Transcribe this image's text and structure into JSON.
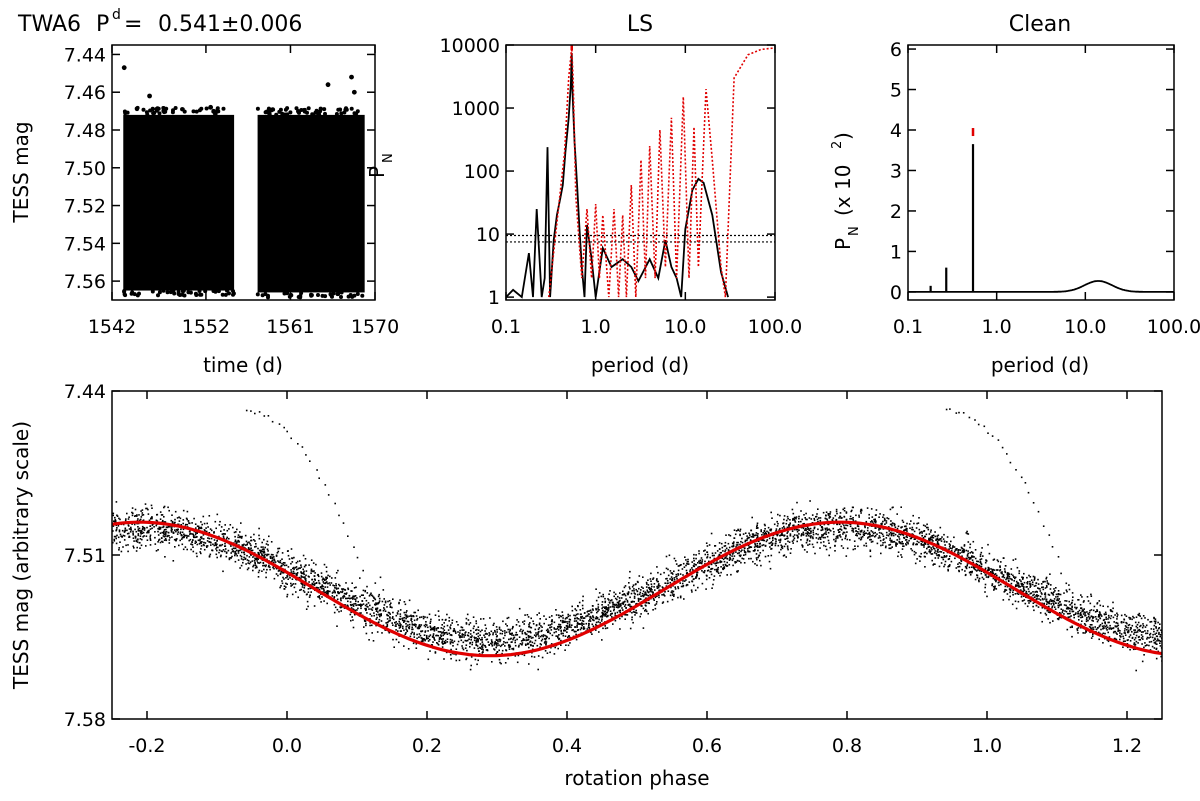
{
  "header": {
    "star": "TWA6",
    "period_symbol": "P",
    "period_superscript": "d",
    "period_equals": "=",
    "period_value": "0.541±0.006"
  },
  "chart_data": [
    {
      "id": "lightcurve",
      "type": "scatter",
      "title": "",
      "xlabel": "time (d)",
      "ylabel": "TESS mag",
      "xlim": [
        1542,
        1570
      ],
      "ylim": [
        7.57,
        7.435
      ],
      "y_inverted": true,
      "x_ticks": [
        "1542",
        "1552",
        "1561",
        "1570"
      ],
      "x_tick_values": [
        1542,
        1552,
        1561,
        1570
      ],
      "y_ticks": [
        "7.44",
        "7.46",
        "7.48",
        "7.50",
        "7.52",
        "7.54",
        "7.56"
      ],
      "y_tick_values": [
        7.44,
        7.46,
        7.48,
        7.5,
        7.52,
        7.54,
        7.56
      ],
      "segments": [
        {
          "x_start": 1543.2,
          "x_end": 1555.0,
          "y_top": 7.472,
          "y_bottom": 7.565
        },
        {
          "x_start": 1557.5,
          "x_end": 1568.9,
          "y_top": 7.472,
          "y_bottom": 7.566
        }
      ],
      "outliers": [
        {
          "x": 1543.3,
          "y": 7.447
        },
        {
          "x": 1546.0,
          "y": 7.462
        },
        {
          "x": 1552.5,
          "y": 7.468
        },
        {
          "x": 1565.0,
          "y": 7.456
        },
        {
          "x": 1567.5,
          "y": 7.452
        },
        {
          "x": 1567.8,
          "y": 7.46
        }
      ],
      "color": "#000000"
    },
    {
      "id": "ls",
      "type": "line",
      "title": "LS",
      "xlabel": "period (d)",
      "ylabel": "P",
      "ylabel_subscript": "N",
      "x_scale": "log",
      "y_scale": "log",
      "xlim": [
        0.1,
        100
      ],
      "ylim": [
        0.9,
        10000
      ],
      "x_ticks": [
        "0.1",
        "1.0",
        "10.0",
        "100.0"
      ],
      "x_tick_values": [
        0.1,
        1,
        10,
        100
      ],
      "y_ticks": [
        "1",
        "10",
        "100",
        "1000",
        "10000"
      ],
      "y_tick_values": [
        1,
        10,
        100,
        1000,
        10000
      ],
      "threshold_lines": [
        7.5,
        9.5
      ],
      "series": [
        {
          "style": "solid",
          "color": "#000000",
          "x": [
            0.1,
            0.12,
            0.15,
            0.18,
            0.2,
            0.22,
            0.25,
            0.27,
            0.29,
            0.31,
            0.34,
            0.37,
            0.4,
            0.43,
            0.46,
            0.5,
            0.53,
            0.541,
            0.55,
            0.58,
            0.62,
            0.66,
            0.7,
            0.75,
            0.8,
            0.9,
            1.0,
            1.2,
            1.5,
            2.0,
            2.5,
            3.0,
            4.0,
            5.0,
            6.0,
            7.0,
            8.0,
            9.0,
            10.0,
            12.0,
            14.0,
            16.0,
            20.0,
            25.0,
            30.0
          ],
          "y": [
            1,
            1.3,
            1,
            5,
            1,
            25,
            1,
            2,
            240,
            1,
            8,
            20,
            35,
            60,
            200,
            700,
            2500,
            7500,
            2000,
            300,
            60,
            12,
            3,
            1,
            14,
            4,
            1,
            6,
            3,
            4,
            3,
            1.8,
            4,
            2,
            8,
            3,
            2,
            1,
            12,
            50,
            75,
            65,
            20,
            2.5,
            1
          ]
        },
        {
          "style": "dotted",
          "color": "#e00000",
          "x": [
            0.3,
            0.45,
            0.5,
            0.541,
            0.56,
            0.6,
            0.7,
            0.8,
            0.9,
            1.0,
            1.1,
            1.2,
            1.4,
            1.6,
            1.8,
            2.0,
            2.2,
            2.5,
            2.8,
            3.2,
            3.6,
            4.0,
            4.6,
            5.2,
            6.0,
            7.0,
            8.0,
            9.5,
            11.0,
            12.5,
            14.0,
            17.0,
            20.0,
            25.0,
            28.0,
            35.0,
            50.0,
            70.0,
            100.0
          ],
          "y": [
            1,
            200,
            3000,
            9000,
            3000,
            40,
            2,
            25,
            2,
            30,
            2,
            20,
            1,
            25,
            1,
            20,
            1,
            60,
            1,
            150,
            2,
            250,
            2,
            450,
            3,
            700,
            2,
            1500,
            2,
            500,
            3,
            2000,
            150,
            3,
            1,
            3000,
            7000,
            8500,
            9000
          ]
        },
        {
          "style": "marker",
          "color": "#e00000",
          "x": [
            0.541
          ],
          "y": [
            9500
          ]
        }
      ]
    },
    {
      "id": "clean",
      "type": "line",
      "title": "Clean",
      "xlabel": "period (d)",
      "ylabel": "P",
      "ylabel_subscript": "N",
      "ylabel_suffix": "(x 10",
      "ylabel_exponent": "2",
      "ylabel_close": ")",
      "x_scale": "log",
      "xlim": [
        0.1,
        100
      ],
      "ylim": [
        -0.2,
        6.1
      ],
      "x_ticks": [
        "0.1",
        "1.0",
        "10.0",
        "100.0"
      ],
      "x_tick_values": [
        0.1,
        1,
        10,
        100
      ],
      "y_ticks": [
        "0",
        "1",
        "2",
        "3",
        "4",
        "5",
        "6"
      ],
      "y_tick_values": [
        0,
        1,
        2,
        3,
        4,
        5,
        6
      ],
      "peaks": [
        {
          "x": 0.18,
          "y": 0.15
        },
        {
          "x": 0.27,
          "y": 0.6
        },
        {
          "x": 0.541,
          "y": 3.65
        }
      ],
      "broad_peak": {
        "center": 14.0,
        "height": 0.27
      },
      "marker": {
        "x": 0.541,
        "y": 3.95,
        "color": "#e00000"
      },
      "color": "#000000"
    },
    {
      "id": "phase",
      "type": "scatter",
      "title": "",
      "xlabel": "rotation phase",
      "ylabel": "TESS mag (arbitrary scale)",
      "xlim": [
        -0.25,
        1.25
      ],
      "ylim": [
        7.58,
        7.44
      ],
      "y_inverted": true,
      "x_ticks": [
        "-0.2",
        "0.0",
        "0.2",
        "0.4",
        "0.6",
        "0.8",
        "1.0",
        "1.2"
      ],
      "x_tick_values": [
        -0.2,
        0.0,
        0.2,
        0.4,
        0.6,
        0.8,
        1.0,
        1.2
      ],
      "y_ticks": [
        "7.44",
        "7.51",
        "7.58"
      ],
      "y_tick_values": [
        7.44,
        7.51,
        7.58
      ],
      "model": {
        "mean": 7.5245,
        "amplitude": 0.0285,
        "max_phase": 0.79,
        "color": "#e00000"
      },
      "data_model": {
        "mean": 7.522,
        "amplitude": 0.024,
        "max_phase": 0.79,
        "scatter": 0.0042
      },
      "outlier_tracks": [
        {
          "x_start": -0.06,
          "x_end": 0.12,
          "y_start": 7.448,
          "y_end": 7.528
        },
        {
          "x_start": 0.94,
          "x_end": 1.12,
          "y_start": 7.448,
          "y_end": 7.528
        }
      ],
      "color": "#000000"
    }
  ]
}
